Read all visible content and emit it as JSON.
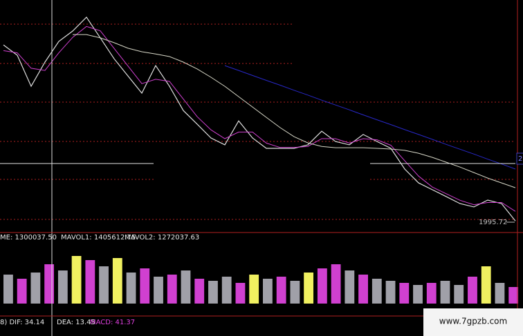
{
  "chart_data": [
    {
      "type": "line",
      "series": [
        {
          "color": "#e0e0e0",
          "values": [
            2796,
            2749,
            2608,
            2718,
            2812,
            2859,
            2922,
            2828,
            2733,
            2655,
            2577,
            2702,
            2608,
            2498,
            2436,
            2373,
            2342,
            2451,
            2373,
            2326,
            2326,
            2326,
            2342,
            2404,
            2357,
            2342,
            2389,
            2357,
            2326,
            2232,
            2169,
            2138,
            2107,
            2075,
            2060,
            2091,
            2075,
            1996
          ]
        },
        {
          "color": "#d040d0",
          "values": [
            2770,
            2760,
            2690,
            2680,
            2760,
            2830,
            2880,
            2860,
            2780,
            2700,
            2620,
            2640,
            2630,
            2550,
            2470,
            2410,
            2370,
            2400,
            2400,
            2350,
            2330,
            2330,
            2335,
            2370,
            2370,
            2350,
            2370,
            2365,
            2340,
            2270,
            2200,
            2150,
            2120,
            2090,
            2070,
            2080,
            2080,
            2040
          ]
        },
        {
          "color": "#d8d8c8",
          "values": [
            null,
            null,
            null,
            null,
            null,
            2843,
            2843,
            2828,
            2806,
            2781,
            2765,
            2755,
            2743,
            2718,
            2687,
            2649,
            2608,
            2561,
            2514,
            2467,
            2420,
            2379,
            2351,
            2335,
            2329,
            2329,
            2329,
            2326,
            2323,
            2317,
            2304,
            2285,
            2263,
            2241,
            2216,
            2191,
            2169,
            2147
          ]
        },
        {
          "color": "#2828c8",
          "values": [
            null,
            null,
            null,
            null,
            null,
            null,
            null,
            null,
            null,
            null,
            null,
            null,
            null,
            null,
            null,
            null,
            2702,
            2680,
            2657,
            2635,
            2613,
            2590,
            2568,
            2545,
            2523,
            2501,
            2478,
            2456,
            2434,
            2411,
            2389,
            2367,
            2344,
            2322,
            2300,
            2277,
            2255,
            2232
          ]
        }
      ],
      "ylim": [
        1950,
        3000
      ],
      "annotation": "1995.72",
      "right_label": "2"
    },
    {
      "type": "bar",
      "legend": [
        "ME: 1300037.50",
        "MAVOL1: 1405612.75",
        "MAVOL2: 1272037.63"
      ],
      "values": [
        1400000,
        1200000,
        1500000,
        1900000,
        1600000,
        2300000,
        2100000,
        1800000,
        2200000,
        1500000,
        1700000,
        1300000,
        1400000,
        1600000,
        1200000,
        1100000,
        1300000,
        1000000,
        1400000,
        1200000,
        1300000,
        1100000,
        1500000,
        1700000,
        1900000,
        1600000,
        1400000,
        1200000,
        1100000,
        1000000,
        900000,
        1000000,
        1100000,
        900000,
        1300000,
        1800000,
        1000000,
        800000
      ],
      "colors": [
        "#a0a0a8",
        "#d040d0",
        "#a0a0a8",
        "#d040d0",
        "#a0a0a8",
        "#f0f060",
        "#d040d0",
        "#a0a0a8",
        "#f0f060",
        "#a0a0a8",
        "#d040d0",
        "#a0a0a8",
        "#d040d0",
        "#a0a0a8",
        "#d040d0",
        "#a0a0a8",
        "#a0a0a8",
        "#d040d0",
        "#f0f060",
        "#a0a0a8",
        "#d040d0",
        "#a0a0a8",
        "#f0f060",
        "#d040d0",
        "#d040d0",
        "#a0a0a8",
        "#d040d0",
        "#a0a0a8",
        "#a0a0a8",
        "#d040d0",
        "#a0a0a8",
        "#d040d0",
        "#a0a0a8",
        "#a0a0a8",
        "#d040d0",
        "#f0f060",
        "#a0a0a8",
        "#d040d0"
      ],
      "ylim": [
        0,
        3000000
      ]
    }
  ],
  "macd_labels": [
    "8) DIF: 34.14",
    "DEA: 13.45",
    "MACD: 41.37"
  ],
  "watermark": "www.7gpzb.com"
}
